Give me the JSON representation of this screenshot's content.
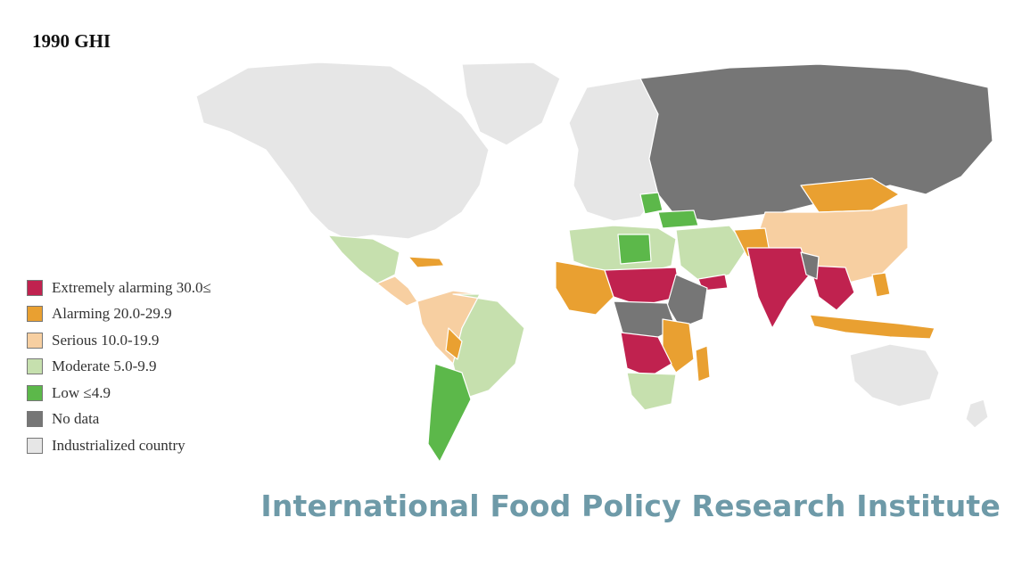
{
  "title": "1990 GHI",
  "legend": [
    {
      "label": "Extremely alarming 30.0≤",
      "color": "#c0224f"
    },
    {
      "label": "Alarming 20.0-29.9",
      "color": "#e9a031"
    },
    {
      "label": "Serious 10.0-19.9",
      "color": "#f7cfa1"
    },
    {
      "label": "Moderate 5.0-9.9",
      "color": "#c6e0ae"
    },
    {
      "label": "Low ≤4.9",
      "color": "#5cb84a"
    },
    {
      "label": "No data",
      "color": "#767676"
    },
    {
      "label": "Industrialized country",
      "color": "#e6e6e6"
    }
  ],
  "credit": "International Food Policy Research Institute"
}
